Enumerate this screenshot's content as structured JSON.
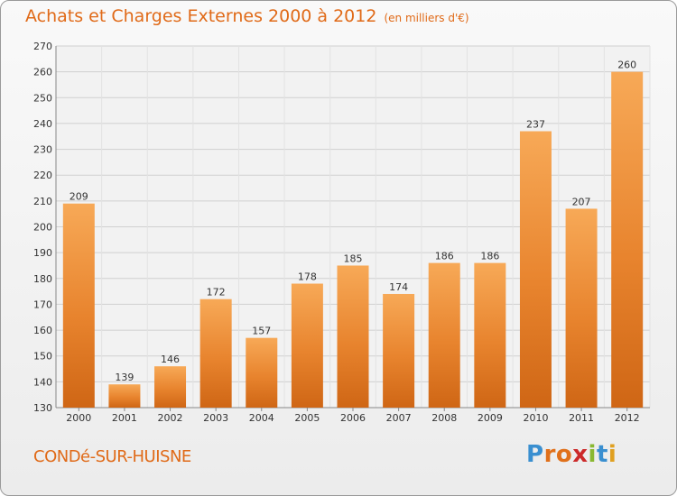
{
  "header": {
    "title": "Achats et Charges Externes 2000 à 2012",
    "subtitle": "(en milliers d'€)"
  },
  "footer": {
    "commune": "CONDé-SUR-HUISNE",
    "logo_letters": [
      "P",
      "r",
      "o",
      "x",
      "i",
      "t",
      "i"
    ],
    "logo_colors": [
      "#3a8fd0",
      "#e0701a",
      "#e0701a",
      "#cc2a2a",
      "#8ab831",
      "#3a8fd0",
      "#e0a020"
    ]
  },
  "chart_data": {
    "type": "bar",
    "title": "Achats et Charges Externes 2000 à 2012",
    "subtitle": "(en milliers d'€)",
    "categories": [
      "2000",
      "2001",
      "2002",
      "2003",
      "2004",
      "2005",
      "2006",
      "2007",
      "2008",
      "2009",
      "2010",
      "2011",
      "2012"
    ],
    "values": [
      209,
      139,
      146,
      172,
      157,
      178,
      185,
      174,
      186,
      186,
      237,
      207,
      260
    ],
    "ylim": [
      130,
      270
    ],
    "yticks": [
      130,
      140,
      150,
      160,
      170,
      180,
      190,
      200,
      210,
      220,
      230,
      240,
      250,
      260,
      270
    ],
    "grid": true,
    "bar_color": "#e8842e",
    "bar_color_light": "#f7a957",
    "bar_color_dark": "#cf6615"
  }
}
